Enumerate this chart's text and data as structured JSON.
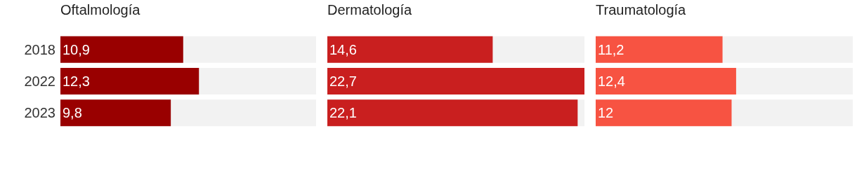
{
  "chart_data": [
    {
      "type": "bar",
      "orientation": "horizontal",
      "title": "Oftalmología",
      "categories": [
        "2018",
        "2022",
        "2023"
      ],
      "values": [
        10.9,
        12.3,
        9.8
      ],
      "value_labels": [
        "10,9",
        "12,3",
        "9,8"
      ],
      "color": "#990000",
      "tick_labels": "y",
      "grid": false,
      "legend": false
    },
    {
      "type": "bar",
      "orientation": "horizontal",
      "title": "Dermatología",
      "categories": [
        "2018",
        "2022",
        "2023"
      ],
      "values": [
        14.6,
        22.7,
        22.1
      ],
      "value_labels": [
        "14,6",
        "22,7",
        "22,1"
      ],
      "color": "#c91f1f",
      "tick_labels": false,
      "grid": false,
      "legend": false
    },
    {
      "type": "bar",
      "orientation": "horizontal",
      "title": "Traumatología",
      "categories": [
        "2018",
        "2022",
        "2023"
      ],
      "values": [
        11.2,
        12.4,
        12
      ],
      "value_labels": [
        "11,2",
        "12,4",
        "12"
      ],
      "color": "#f75342",
      "tick_labels": false,
      "grid": false,
      "legend": false
    }
  ]
}
